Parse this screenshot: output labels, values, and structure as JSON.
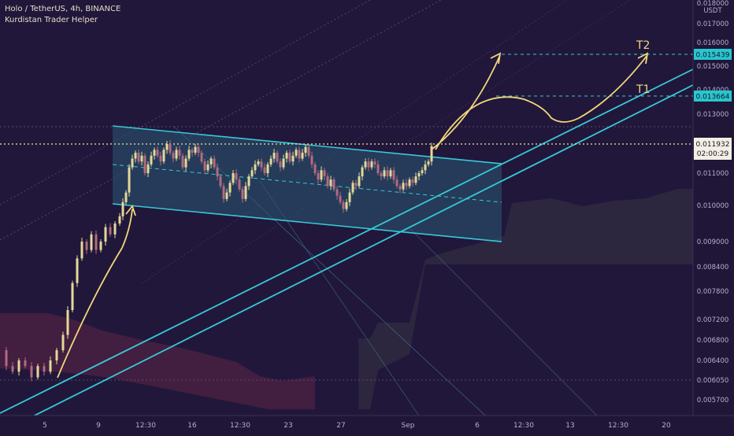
{
  "header": {
    "symbol_line": "Holo / TetherUS, 4h, BINANCE",
    "indicator_line": "Kurdistan Trader Helper"
  },
  "axis": {
    "unit": "USDT",
    "y_ticks": [
      "0.018000",
      "0.017000",
      "0.016000",
      "0.015000",
      "0.014000",
      "0.013000",
      "0.012000",
      "0.011000",
      "0.010000",
      "0.009000",
      "0.008400",
      "0.007800",
      "0.007200",
      "0.006800",
      "0.006400",
      "0.006050",
      "0.005700"
    ],
    "x_ticks": [
      "5",
      "9",
      "12:30",
      "16",
      "12:30",
      "23",
      "27",
      "Sep",
      "6",
      "12:30",
      "13",
      "12:30",
      "20"
    ]
  },
  "badges": {
    "t2_price": "0.015439",
    "t1_price": "0.013664",
    "current_price": "0.011932",
    "countdown": "02:00:29"
  },
  "targets": {
    "t1": "T1",
    "t2": "T2"
  },
  "colors": {
    "background": "#1f1638",
    "channel": "#38c9d6",
    "arrow": "#f2d77a",
    "badge": "#29c6cf",
    "candle_up": "#e3d89a",
    "candle_down": "#b36a82"
  },
  "chart_data": {
    "type": "candlestick",
    "title": "Holo / TetherUS, 4h, BINANCE",
    "ylabel": "USDT",
    "ylim": [
      0.0054,
      0.018
    ],
    "current_price": 0.011932,
    "targets": [
      {
        "name": "T1",
        "price": 0.013664
      },
      {
        "name": "T2",
        "price": 0.015439
      }
    ],
    "price_path": [
      [
        0,
        0.0066
      ],
      [
        8,
        0.0063
      ],
      [
        16,
        0.0062
      ],
      [
        24,
        0.0064
      ],
      [
        32,
        0.0063
      ],
      [
        40,
        0.0061
      ],
      [
        48,
        0.0063
      ],
      [
        56,
        0.0062
      ],
      [
        64,
        0.0064
      ],
      [
        72,
        0.0066
      ],
      [
        80,
        0.0069
      ],
      [
        86,
        0.0074
      ],
      [
        92,
        0.008
      ],
      [
        98,
        0.0086
      ],
      [
        104,
        0.009
      ],
      [
        110,
        0.0088
      ],
      [
        116,
        0.0092
      ],
      [
        122,
        0.0088
      ],
      [
        128,
        0.009
      ],
      [
        134,
        0.0094
      ],
      [
        140,
        0.0092
      ],
      [
        146,
        0.0095
      ],
      [
        152,
        0.0097
      ],
      [
        156,
        0.0101
      ],
      [
        160,
        0.0104
      ],
      [
        164,
        0.0112
      ],
      [
        168,
        0.0115
      ],
      [
        172,
        0.0117
      ],
      [
        176,
        0.0114
      ],
      [
        180,
        0.0116
      ],
      [
        184,
        0.011
      ],
      [
        188,
        0.0113
      ],
      [
        192,
        0.0116
      ],
      [
        196,
        0.0118
      ],
      [
        200,
        0.0116
      ],
      [
        204,
        0.0114
      ],
      [
        208,
        0.0118
      ],
      [
        212,
        0.012
      ],
      [
        216,
        0.0117
      ],
      [
        220,
        0.0115
      ],
      [
        224,
        0.0118
      ],
      [
        228,
        0.0116
      ],
      [
        232,
        0.0112
      ],
      [
        236,
        0.0115
      ],
      [
        240,
        0.0118
      ],
      [
        244,
        0.0117
      ],
      [
        248,
        0.0119
      ],
      [
        252,
        0.0117
      ],
      [
        256,
        0.0114
      ],
      [
        260,
        0.0111
      ],
      [
        264,
        0.0113
      ],
      [
        268,
        0.0115
      ],
      [
        272,
        0.0112
      ],
      [
        276,
        0.0109
      ],
      [
        280,
        0.0106
      ],
      [
        284,
        0.0102
      ],
      [
        288,
        0.0104
      ],
      [
        292,
        0.0107
      ],
      [
        296,
        0.011
      ],
      [
        300,
        0.0108
      ],
      [
        304,
        0.0105
      ],
      [
        308,
        0.0102
      ],
      [
        312,
        0.0106
      ],
      [
        316,
        0.0109
      ],
      [
        320,
        0.0111
      ],
      [
        324,
        0.0113
      ],
      [
        328,
        0.0114
      ],
      [
        332,
        0.0112
      ],
      [
        336,
        0.011
      ],
      [
        340,
        0.0113
      ],
      [
        344,
        0.0115
      ],
      [
        348,
        0.0117
      ],
      [
        352,
        0.0114
      ],
      [
        356,
        0.0112
      ],
      [
        360,
        0.0115
      ],
      [
        364,
        0.0117
      ],
      [
        368,
        0.0114
      ],
      [
        372,
        0.0116
      ],
      [
        376,
        0.0118
      ],
      [
        380,
        0.0115
      ],
      [
        384,
        0.0117
      ],
      [
        388,
        0.0119
      ],
      [
        392,
        0.0116
      ],
      [
        396,
        0.0113
      ],
      [
        400,
        0.011
      ],
      [
        404,
        0.0108
      ],
      [
        408,
        0.0111
      ],
      [
        412,
        0.0109
      ],
      [
        416,
        0.0106
      ],
      [
        420,
        0.0108
      ],
      [
        424,
        0.0105
      ],
      [
        428,
        0.0103
      ],
      [
        432,
        0.0101
      ],
      [
        436,
        0.0099
      ],
      [
        440,
        0.0101
      ],
      [
        444,
        0.0104
      ],
      [
        448,
        0.0107
      ],
      [
        452,
        0.0106
      ],
      [
        456,
        0.0109
      ],
      [
        460,
        0.0112
      ],
      [
        464,
        0.0114
      ],
      [
        468,
        0.0112
      ],
      [
        472,
        0.0114
      ],
      [
        476,
        0.0113
      ],
      [
        480,
        0.011
      ],
      [
        484,
        0.0109
      ],
      [
        488,
        0.0111
      ],
      [
        492,
        0.0109
      ],
      [
        496,
        0.0111
      ],
      [
        500,
        0.0108
      ],
      [
        504,
        0.0106
      ],
      [
        508,
        0.0105
      ],
      [
        512,
        0.0107
      ],
      [
        516,
        0.0106
      ],
      [
        520,
        0.0108
      ],
      [
        524,
        0.0107
      ],
      [
        528,
        0.0109
      ],
      [
        532,
        0.011
      ],
      [
        536,
        0.0111
      ],
      [
        540,
        0.0113
      ],
      [
        544,
        0.0114
      ],
      [
        548,
        0.011932
      ]
    ]
  }
}
